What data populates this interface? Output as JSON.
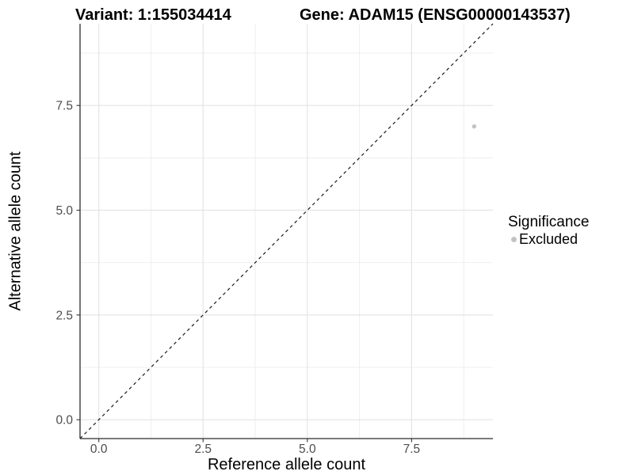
{
  "header": {
    "title_variant": "Variant: 1:155034414",
    "title_gene": "Gene: ADAM15 (ENSG00000143537)"
  },
  "chart_data": {
    "type": "scatter",
    "title_left": "Variant: 1:155034414",
    "title_right": "Gene: ADAM15 (ENSG00000143537)",
    "xlabel": "Reference allele count",
    "ylabel": "Alternative allele count",
    "xlim": [
      -0.45,
      9.45
    ],
    "ylim": [
      -0.45,
      9.45
    ],
    "x_ticks": {
      "values": [
        0,
        2.5,
        5,
        7.5
      ],
      "labels": [
        "0.0",
        "2.5",
        "5.0",
        "7.5"
      ]
    },
    "y_ticks": {
      "values": [
        0,
        2.5,
        5,
        7.5
      ],
      "labels": [
        "0.0",
        "2.5",
        "5.0",
        "7.5"
      ]
    },
    "x_minor_ticks": [
      1.25,
      3.75,
      6.25,
      8.75
    ],
    "y_minor_ticks": [
      1.25,
      3.75,
      6.25,
      8.75
    ],
    "grid": "major+minor",
    "series": [
      {
        "name": "Excluded",
        "color": "#c3c3c3",
        "points": [
          {
            "x": 9,
            "y": 7
          }
        ]
      }
    ],
    "identity_line": {
      "equation": "y = x",
      "style": "dashed",
      "color": "#1a1a1a"
    },
    "legend": {
      "title": "Significance",
      "position": "right",
      "entries": [
        {
          "label": "Excluded",
          "color": "#c3c3c3"
        }
      ]
    }
  },
  "colors": {
    "background": "#ffffff",
    "grid_major": "#e4e4e4",
    "grid_minor": "#eeeeee",
    "axis_line": "#2b2b2b",
    "tick_mark": "#333333",
    "tick_label": "#4d4d4d",
    "title_text": "#000000"
  }
}
